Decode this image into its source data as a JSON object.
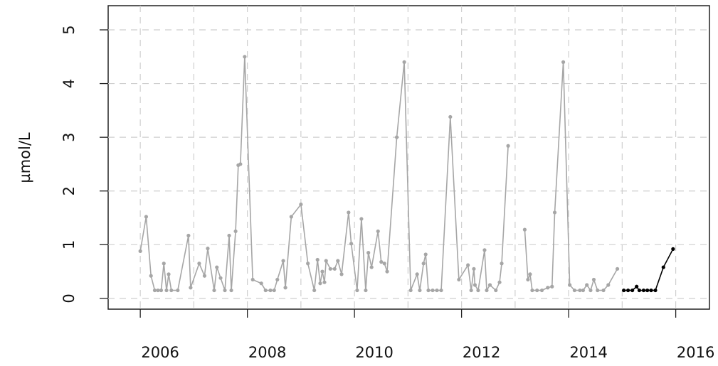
{
  "chart_data": {
    "type": "line",
    "y_label": "µmol/L",
    "xlim": [
      2005.4,
      2016.63
    ],
    "ylim": [
      -0.2,
      5.45
    ],
    "xticks": [
      2006,
      2008,
      2010,
      2012,
      2014,
      2016
    ],
    "xgrid": [
      2006,
      2007,
      2008,
      2009,
      2010,
      2011,
      2012,
      2013,
      2014,
      2015,
      2016
    ],
    "yticks": [
      0,
      1,
      2,
      3,
      4,
      5
    ],
    "grid": true,
    "series": [
      {
        "color": "#a6a6a6",
        "x": [
          2006.0,
          2006.11,
          2006.2,
          2006.27,
          2006.33,
          2006.39,
          2006.44,
          2006.49,
          2006.53,
          2006.58,
          2006.7,
          2006.9,
          2006.94,
          2007.1,
          2007.2,
          2007.26,
          2007.38,
          2007.43,
          2007.5,
          2007.58,
          2007.66,
          2007.7,
          2007.78,
          2007.83,
          2007.87,
          2007.95,
          2008.1,
          2008.26,
          2008.34,
          2008.43,
          2008.5,
          2008.56,
          2008.67,
          2008.71,
          2008.82,
          2009.0,
          2009.13,
          2009.25,
          2009.31,
          2009.36,
          2009.4,
          2009.44,
          2009.47,
          2009.55,
          2009.63,
          2009.69,
          2009.76,
          2009.89,
          2009.94,
          2010.05,
          2010.13,
          2010.21,
          2010.26,
          2010.32,
          2010.44,
          2010.5,
          2010.56,
          2010.61,
          2010.79,
          2010.93,
          2011.05,
          2011.17,
          2011.22,
          2011.29,
          2011.33,
          2011.38,
          2011.46,
          2011.54,
          2011.62,
          2011.79,
          2011.95,
          2012.12,
          2012.18,
          2012.23,
          2012.25,
          2012.31,
          2012.43,
          2012.47,
          2012.53,
          2012.64,
          2012.71,
          2012.75,
          2012.87,
          2013.02,
          2013.18,
          2013.24,
          2013.28,
          2013.32,
          2013.41,
          2013.5,
          2013.61,
          2013.69,
          2013.74,
          2013.9,
          2014.02,
          2014.11,
          2014.21,
          2014.27,
          2014.34,
          2014.41,
          2014.47,
          2014.54,
          2014.65,
          2014.74,
          2014.91
        ],
        "values": [
          0.88,
          1.52,
          0.42,
          0.15,
          0.15,
          0.15,
          0.65,
          0.15,
          0.45,
          0.15,
          0.15,
          1.17,
          0.2,
          0.65,
          0.42,
          0.93,
          0.15,
          0.58,
          0.38,
          0.15,
          1.17,
          0.15,
          1.25,
          2.48,
          2.5,
          4.5,
          0.35,
          0.28,
          0.15,
          0.15,
          0.15,
          0.35,
          0.7,
          0.2,
          1.52,
          1.75,
          0.65,
          0.15,
          0.72,
          0.28,
          0.5,
          0.3,
          0.7,
          0.55,
          0.55,
          0.7,
          0.45,
          1.6,
          1.02,
          0.15,
          1.48,
          0.15,
          0.85,
          0.58,
          1.25,
          0.68,
          0.65,
          0.5,
          3.0,
          4.4,
          0.15,
          0.45,
          0.15,
          0.65,
          0.82,
          0.15,
          0.15,
          0.15,
          0.15,
          3.38,
          0.35,
          0.62,
          0.15,
          0.55,
          0.25,
          0.15,
          0.9,
          0.15,
          0.25,
          0.15,
          0.3,
          0.65,
          2.84,
          null,
          1.28,
          0.35,
          0.45,
          0.15,
          0.15,
          0.15,
          0.2,
          0.22,
          1.6,
          4.4,
          0.25,
          0.15,
          0.15,
          0.15,
          0.25,
          0.15,
          0.35,
          0.15,
          0.15,
          0.25,
          0.55
        ]
      },
      {
        "color": "#000000",
        "x": [
          2015.03,
          2015.11,
          2015.19,
          2015.27,
          2015.32,
          2015.4,
          2015.47,
          2015.54,
          2015.62,
          2015.77,
          2015.95
        ],
        "values": [
          0.15,
          0.15,
          0.15,
          0.22,
          0.15,
          0.15,
          0.15,
          0.15,
          0.15,
          0.58,
          0.92
        ]
      }
    ]
  }
}
